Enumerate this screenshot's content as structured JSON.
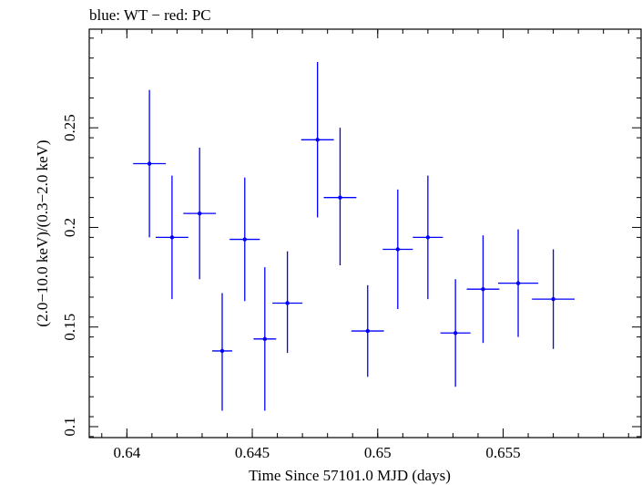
{
  "chart_data": {
    "type": "scatter",
    "title": "blue: WT − red: PC",
    "xlabel": "Time Since 57101.0 MJD (days)",
    "ylabel": "(2.0−10.0 keV)/(0.3−2.0 keV)",
    "xlim": [
      0.6385,
      0.6605
    ],
    "ylim": [
      0.0945,
      0.2995
    ],
    "x_ticks": [
      0.64,
      0.645,
      0.65,
      0.655
    ],
    "x_tick_labels": [
      "0.64",
      "0.645",
      "0.65",
      "0.655"
    ],
    "y_ticks": [
      0.1,
      0.15,
      0.2,
      0.25
    ],
    "y_tick_labels": [
      "0.1",
      "0.15",
      "0.2",
      "0.25"
    ],
    "grid": false,
    "series": [
      {
        "color": "#0000ff",
        "points": [
          {
            "x": 0.6409,
            "xerr": 0.00065,
            "y": 0.232,
            "ylo": 0.195,
            "yhi": 0.269
          },
          {
            "x": 0.6418,
            "xerr": 0.00065,
            "y": 0.195,
            "ylo": 0.164,
            "yhi": 0.226
          },
          {
            "x": 0.6429,
            "xerr": 0.00065,
            "y": 0.207,
            "ylo": 0.174,
            "yhi": 0.24
          },
          {
            "x": 0.6438,
            "xerr": 0.0004,
            "y": 0.138,
            "ylo": 0.108,
            "yhi": 0.167
          },
          {
            "x": 0.6447,
            "xerr": 0.0006,
            "y": 0.194,
            "ylo": 0.163,
            "yhi": 0.225
          },
          {
            "x": 0.6455,
            "xerr": 0.00045,
            "y": 0.144,
            "ylo": 0.108,
            "yhi": 0.18
          },
          {
            "x": 0.6464,
            "xerr": 0.0006,
            "y": 0.162,
            "ylo": 0.137,
            "yhi": 0.188
          },
          {
            "x": 0.6476,
            "xerr": 0.00065,
            "y": 0.244,
            "ylo": 0.205,
            "yhi": 0.283
          },
          {
            "x": 0.6485,
            "xerr": 0.00065,
            "y": 0.215,
            "ylo": 0.181,
            "yhi": 0.25
          },
          {
            "x": 0.6496,
            "xerr": 0.00065,
            "y": 0.148,
            "ylo": 0.125,
            "yhi": 0.171
          },
          {
            "x": 0.6508,
            "xerr": 0.0006,
            "y": 0.189,
            "ylo": 0.159,
            "yhi": 0.219
          },
          {
            "x": 0.652,
            "xerr": 0.0006,
            "y": 0.195,
            "ylo": 0.164,
            "yhi": 0.226
          },
          {
            "x": 0.6531,
            "xerr": 0.0006,
            "y": 0.147,
            "ylo": 0.12,
            "yhi": 0.174
          },
          {
            "x": 0.6542,
            "xerr": 0.00065,
            "y": 0.169,
            "ylo": 0.142,
            "yhi": 0.196
          },
          {
            "x": 0.6556,
            "xerr": 0.0008,
            "y": 0.172,
            "ylo": 0.145,
            "yhi": 0.199
          },
          {
            "x": 0.657,
            "xerr": 0.00085,
            "y": 0.164,
            "ylo": 0.139,
            "yhi": 0.189
          }
        ]
      }
    ]
  }
}
